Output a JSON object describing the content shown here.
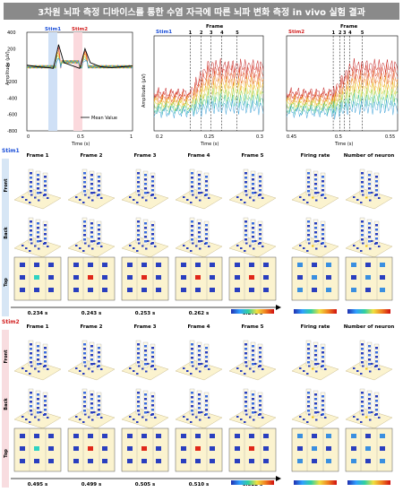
{
  "title": "3차원 뇌파 측정 디바이스를 통한 수염 자극에 따른 뇌파 변화 측정 in vivo 실험 결과",
  "charts": {
    "left": {
      "stim1_label": "Stim1",
      "stim2_label": "Stim2",
      "ylabel": "Amplitude (μV)",
      "xlabel": "Time (s)",
      "yticks": [
        "400",
        "200",
        "0",
        "-200",
        "-400",
        "-600",
        "-800"
      ],
      "xticks": [
        "0",
        "0.5",
        "1"
      ],
      "legend": "Mean Value"
    },
    "middle": {
      "stim_label": "Stim1",
      "frame_title": "Frame",
      "frame_numbers": [
        "1",
        "2",
        "3",
        "4",
        "5"
      ],
      "ylabel": "Amplitude (μV)",
      "xlabel": "Time (s)",
      "xticks": [
        "0.2",
        "0.25",
        "0.3"
      ]
    },
    "right": {
      "stim_label": "Stim2",
      "frame_title": "Frame",
      "frame_numbers": [
        "1",
        "2",
        "3",
        "4",
        "5"
      ],
      "xlabel": "Time (s)",
      "xticks": [
        "0.45",
        "0.5",
        "0.55"
      ]
    }
  },
  "chart_data": [
    {
      "type": "line",
      "title": "",
      "xlabel": "Time (s)",
      "ylabel": "Amplitude (μV)",
      "xlim": [
        0,
        1
      ],
      "ylim": [
        -800,
        400
      ],
      "series": [
        {
          "name": "Mean Value",
          "x": [
            0,
            0.1,
            0.2,
            0.25,
            0.3,
            0.35,
            0.5,
            0.55,
            0.6,
            0.7,
            0.8,
            0.9,
            1.0
          ],
          "y": [
            0,
            -20,
            -30,
            -40,
            250,
            30,
            -40,
            200,
            30,
            -20,
            -30,
            -20,
            -10
          ]
        }
      ]
    },
    {
      "type": "line",
      "title": "",
      "xlabel": "Time (s)",
      "ylabel": "Amplitude (μV)",
      "xlim": [
        0.2,
        0.3
      ]
    },
    {
      "type": "line",
      "title": "",
      "xlabel": "Time (s)",
      "xlim": [
        0.45,
        0.55
      ]
    }
  ],
  "grid1": {
    "stim_label": "Stim1",
    "columns": [
      "Frame 1",
      "Frame 2",
      "Frame 3",
      "Frame 4",
      "Frame 5",
      "Firing rate",
      "Number of neuron"
    ],
    "rows": [
      "Front",
      "Back",
      "Top"
    ],
    "times": [
      "0.234 s",
      "0.243 s",
      "0.253 s",
      "0.262 s",
      "0.278 s"
    ]
  },
  "grid2": {
    "stim_label": "Stim2",
    "columns": [
      "Frame 1",
      "Frame 2",
      "Frame 3",
      "Frame 4",
      "Frame 5",
      "Firing rate",
      "Number of neuron"
    ],
    "rows": [
      "Front",
      "Back",
      "Top"
    ],
    "times": [
      "0.495 s",
      "0.499 s",
      "0.505 s",
      "0.510 s",
      "0.522 s"
    ]
  },
  "colors": {
    "stim1": "#1a4ed8",
    "stim2": "#d21f1f",
    "banner": "#8a8a8a",
    "tile": "#fbf3cf",
    "electrode": "#2a3fbf"
  }
}
